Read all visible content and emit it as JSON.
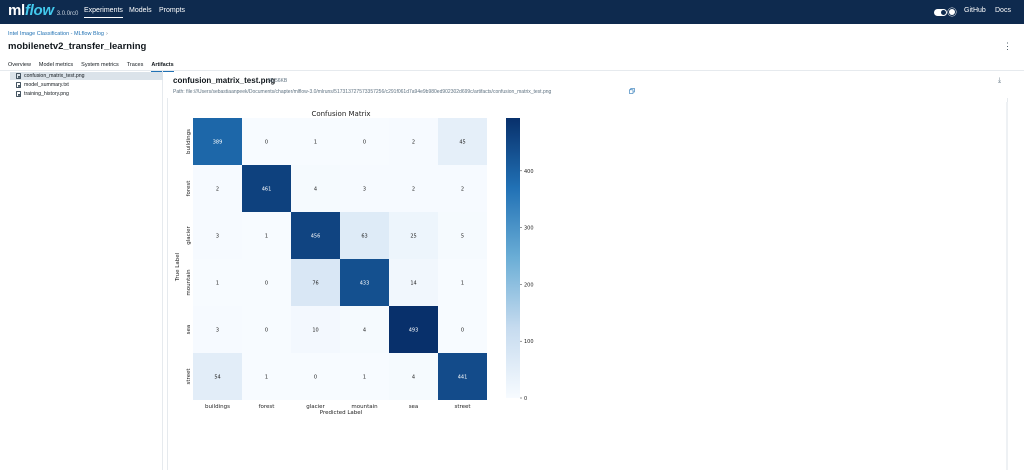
{
  "topbar": {
    "logo_ml": "ml",
    "logo_flow": "flow",
    "version": "3.0.0rc0",
    "nav": [
      "Experiments",
      "Models",
      "Prompts"
    ],
    "right_links": [
      "GitHub",
      "Docs"
    ]
  },
  "breadcrumb": {
    "text": "Intel Image Classification - MLflow Blog",
    "separator": "›"
  },
  "page_title": "mobilenetv2_transfer_learning",
  "tabs": [
    "Overview",
    "Model metrics",
    "System metrics",
    "Traces",
    "Artifacts"
  ],
  "active_tab": "Artifacts",
  "files": [
    {
      "name": "confusion_matrix_test.png",
      "selected": true
    },
    {
      "name": "model_summary.txt",
      "selected": false
    },
    {
      "name": "training_history.png",
      "selected": false
    }
  ],
  "artifact": {
    "name": "confusion_matrix_test.png",
    "size": "35.56KB",
    "path": "Path: file:///Users/sebastiaanpeek/Documents/chapter/mlflow-3.0/mlruns/517313727573357256/c291f061d7a94e9b980ed902302d699c/artifacts/confusion_matrix_test.png"
  },
  "chart_data": {
    "type": "heatmap",
    "title": "Confusion Matrix",
    "xlabel": "Predicted Label",
    "ylabel": "True Label",
    "x_categories": [
      "buildings",
      "forest",
      "glacier",
      "mountain",
      "sea",
      "street"
    ],
    "y_categories": [
      "buildings",
      "forest",
      "glacier",
      "mountain",
      "sea",
      "street"
    ],
    "values": [
      [
        389,
        0,
        1,
        0,
        2,
        45
      ],
      [
        2,
        461,
        4,
        3,
        2,
        2
      ],
      [
        3,
        1,
        456,
        63,
        25,
        5
      ],
      [
        1,
        0,
        76,
        433,
        14,
        1
      ],
      [
        3,
        0,
        10,
        4,
        493,
        0
      ],
      [
        54,
        1,
        0,
        1,
        4,
        441
      ]
    ],
    "colorbar": {
      "ticks": [
        0,
        100,
        200,
        300,
        400
      ],
      "range": [
        0,
        493
      ],
      "colors": [
        "#f7fbff",
        "#08306b"
      ]
    }
  }
}
